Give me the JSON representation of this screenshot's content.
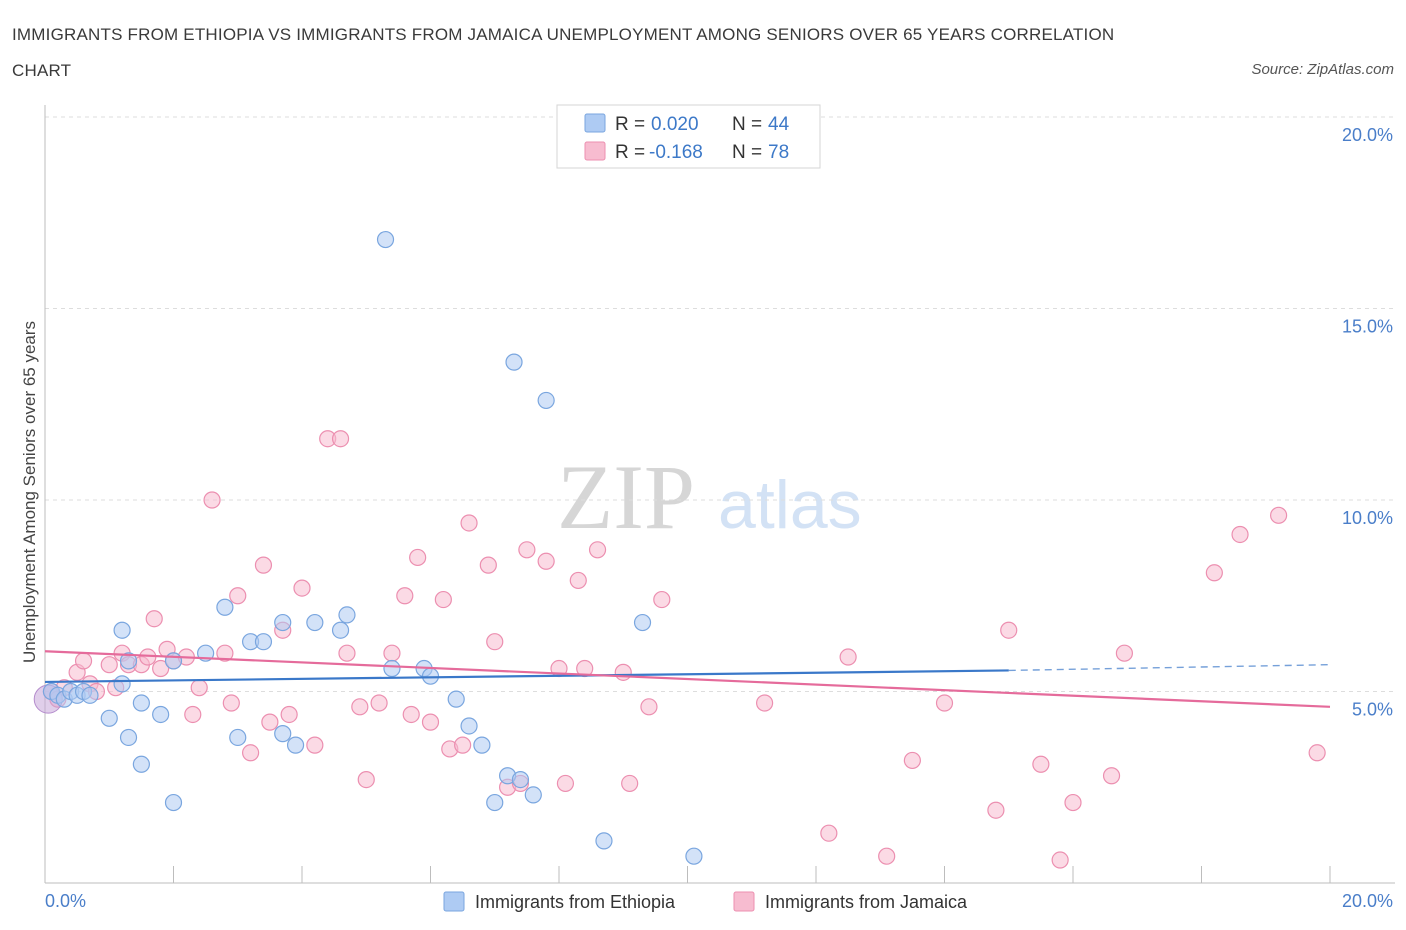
{
  "title_line1": "IMMIGRANTS FROM ETHIOPIA VS IMMIGRANTS FROM JAMAICA UNEMPLOYMENT AMONG SENIORS OVER 65 YEARS CORRELATION",
  "title_line2": "CHART",
  "source": "Source: ZipAtlas.com",
  "watermark": {
    "zip": "ZIP",
    "atlas": "atlas"
  },
  "legend": {
    "r_label": "R =",
    "n_label": "N =",
    "rows": [
      {
        "r": "0.020",
        "n": "44"
      },
      {
        "r": "-0.168",
        "n": "78"
      }
    ]
  },
  "colors": {
    "ethiopia_fill": "#aecbf3",
    "ethiopia_stroke": "#7aa6df",
    "ethiopia_line": "#3a78c9",
    "jamaica_fill": "#f7bcd0",
    "jamaica_stroke": "#ec8fb0",
    "jamaica_line": "#e56b9b",
    "tick_text": "#4a7ec9"
  },
  "chart_data": {
    "type": "scatter",
    "title": "IMMIGRANTS FROM ETHIOPIA VS IMMIGRANTS FROM JAMAICA UNEMPLOYMENT AMONG SENIORS OVER 65 YEARS CORRELATION CHART",
    "xlabel": "",
    "ylabel": "Unemployment Among Seniors over 65 years",
    "xlim": [
      0,
      20
    ],
    "ylim": [
      0,
      20
    ],
    "x_tick_labels": [
      "0.0%",
      "20.0%"
    ],
    "y_tick_values": [
      5,
      10,
      15,
      20
    ],
    "y_tick_labels": [
      "5.0%",
      "10.0%",
      "15.0%",
      "20.0%"
    ],
    "grid": true,
    "legend_position": "bottom",
    "series": [
      {
        "name": "Immigrants from Ethiopia",
        "r": 0.02,
        "n": 44,
        "trend": {
          "x0": 0,
          "y0": 5.25,
          "x1": 15,
          "y1": 5.55,
          "dash_to_x": 20,
          "dash_to_y": 5.7
        },
        "points": [
          [
            0.1,
            5.0
          ],
          [
            0.2,
            4.9
          ],
          [
            0.3,
            4.8
          ],
          [
            0.4,
            5.0
          ],
          [
            0.5,
            4.9
          ],
          [
            0.6,
            5.0
          ],
          [
            0.7,
            4.9
          ],
          [
            1.0,
            4.3
          ],
          [
            1.2,
            5.2
          ],
          [
            1.3,
            5.8
          ],
          [
            1.3,
            3.8
          ],
          [
            1.5,
            4.7
          ],
          [
            1.8,
            4.4
          ],
          [
            1.5,
            3.1
          ],
          [
            2.0,
            2.1
          ],
          [
            2.5,
            6.0
          ],
          [
            2.8,
            7.2
          ],
          [
            3.0,
            3.8
          ],
          [
            3.2,
            6.3
          ],
          [
            3.4,
            6.3
          ],
          [
            3.7,
            6.8
          ],
          [
            3.7,
            3.9
          ],
          [
            3.9,
            3.6
          ],
          [
            4.2,
            6.8
          ],
          [
            4.6,
            6.6
          ],
          [
            4.7,
            7.0
          ],
          [
            5.3,
            16.8
          ],
          [
            5.4,
            5.6
          ],
          [
            5.9,
            5.6
          ],
          [
            6.0,
            5.4
          ],
          [
            6.4,
            4.8
          ],
          [
            6.6,
            4.1
          ],
          [
            6.8,
            3.6
          ],
          [
            7.0,
            2.1
          ],
          [
            7.2,
            2.8
          ],
          [
            7.4,
            2.7
          ],
          [
            7.6,
            2.3
          ],
          [
            7.3,
            13.6
          ],
          [
            7.8,
            12.6
          ],
          [
            8.7,
            1.1
          ],
          [
            9.3,
            6.8
          ],
          [
            10.1,
            0.7
          ],
          [
            1.2,
            6.6
          ],
          [
            2.0,
            5.8
          ]
        ]
      },
      {
        "name": "Immigrants from Jamaica",
        "r": -0.168,
        "n": 78,
        "trend": {
          "x0": 0,
          "y0": 6.05,
          "x1": 20,
          "y1": 4.6
        },
        "points": [
          [
            0.1,
            5.0
          ],
          [
            0.3,
            5.1
          ],
          [
            0.5,
            5.5
          ],
          [
            0.6,
            5.8
          ],
          [
            0.7,
            5.2
          ],
          [
            0.8,
            5.0
          ],
          [
            1.0,
            5.7
          ],
          [
            1.1,
            5.1
          ],
          [
            1.2,
            6.0
          ],
          [
            1.3,
            5.7
          ],
          [
            1.5,
            5.7
          ],
          [
            1.6,
            5.9
          ],
          [
            1.7,
            6.9
          ],
          [
            1.8,
            5.6
          ],
          [
            1.9,
            6.1
          ],
          [
            2.0,
            5.8
          ],
          [
            2.2,
            5.9
          ],
          [
            2.3,
            4.4
          ],
          [
            2.4,
            5.1
          ],
          [
            2.6,
            10.0
          ],
          [
            2.8,
            6.0
          ],
          [
            2.9,
            4.7
          ],
          [
            3.0,
            7.5
          ],
          [
            3.2,
            3.4
          ],
          [
            3.4,
            8.3
          ],
          [
            3.5,
            4.2
          ],
          [
            3.8,
            4.4
          ],
          [
            3.7,
            6.6
          ],
          [
            4.0,
            7.7
          ],
          [
            4.2,
            3.6
          ],
          [
            4.4,
            11.6
          ],
          [
            4.6,
            11.6
          ],
          [
            4.7,
            6.0
          ],
          [
            4.9,
            4.6
          ],
          [
            5.0,
            2.7
          ],
          [
            5.2,
            4.7
          ],
          [
            5.4,
            6.0
          ],
          [
            5.6,
            7.5
          ],
          [
            5.7,
            4.4
          ],
          [
            5.8,
            8.5
          ],
          [
            6.0,
            4.2
          ],
          [
            6.2,
            7.4
          ],
          [
            6.3,
            3.5
          ],
          [
            6.5,
            3.6
          ],
          [
            6.6,
            9.4
          ],
          [
            6.9,
            8.3
          ],
          [
            7.0,
            6.3
          ],
          [
            7.2,
            2.5
          ],
          [
            7.4,
            2.6
          ],
          [
            7.5,
            8.7
          ],
          [
            7.8,
            8.4
          ],
          [
            8.0,
            5.6
          ],
          [
            8.1,
            2.6
          ],
          [
            8.3,
            7.9
          ],
          [
            8.4,
            5.6
          ],
          [
            8.6,
            8.7
          ],
          [
            9.0,
            5.5
          ],
          [
            9.1,
            2.6
          ],
          [
            9.4,
            4.6
          ],
          [
            9.6,
            7.4
          ],
          [
            11.2,
            4.7
          ],
          [
            12.2,
            1.3
          ],
          [
            12.5,
            5.9
          ],
          [
            13.1,
            0.7
          ],
          [
            13.5,
            3.2
          ],
          [
            14.0,
            4.7
          ],
          [
            14.8,
            1.9
          ],
          [
            15.0,
            6.6
          ],
          [
            15.5,
            3.1
          ],
          [
            15.8,
            0.6
          ],
          [
            16.0,
            2.1
          ],
          [
            16.6,
            2.8
          ],
          [
            16.8,
            6.0
          ],
          [
            18.2,
            8.1
          ],
          [
            18.6,
            9.1
          ],
          [
            19.2,
            9.6
          ],
          [
            19.8,
            3.4
          ],
          [
            0.2,
            4.8
          ]
        ]
      }
    ]
  }
}
